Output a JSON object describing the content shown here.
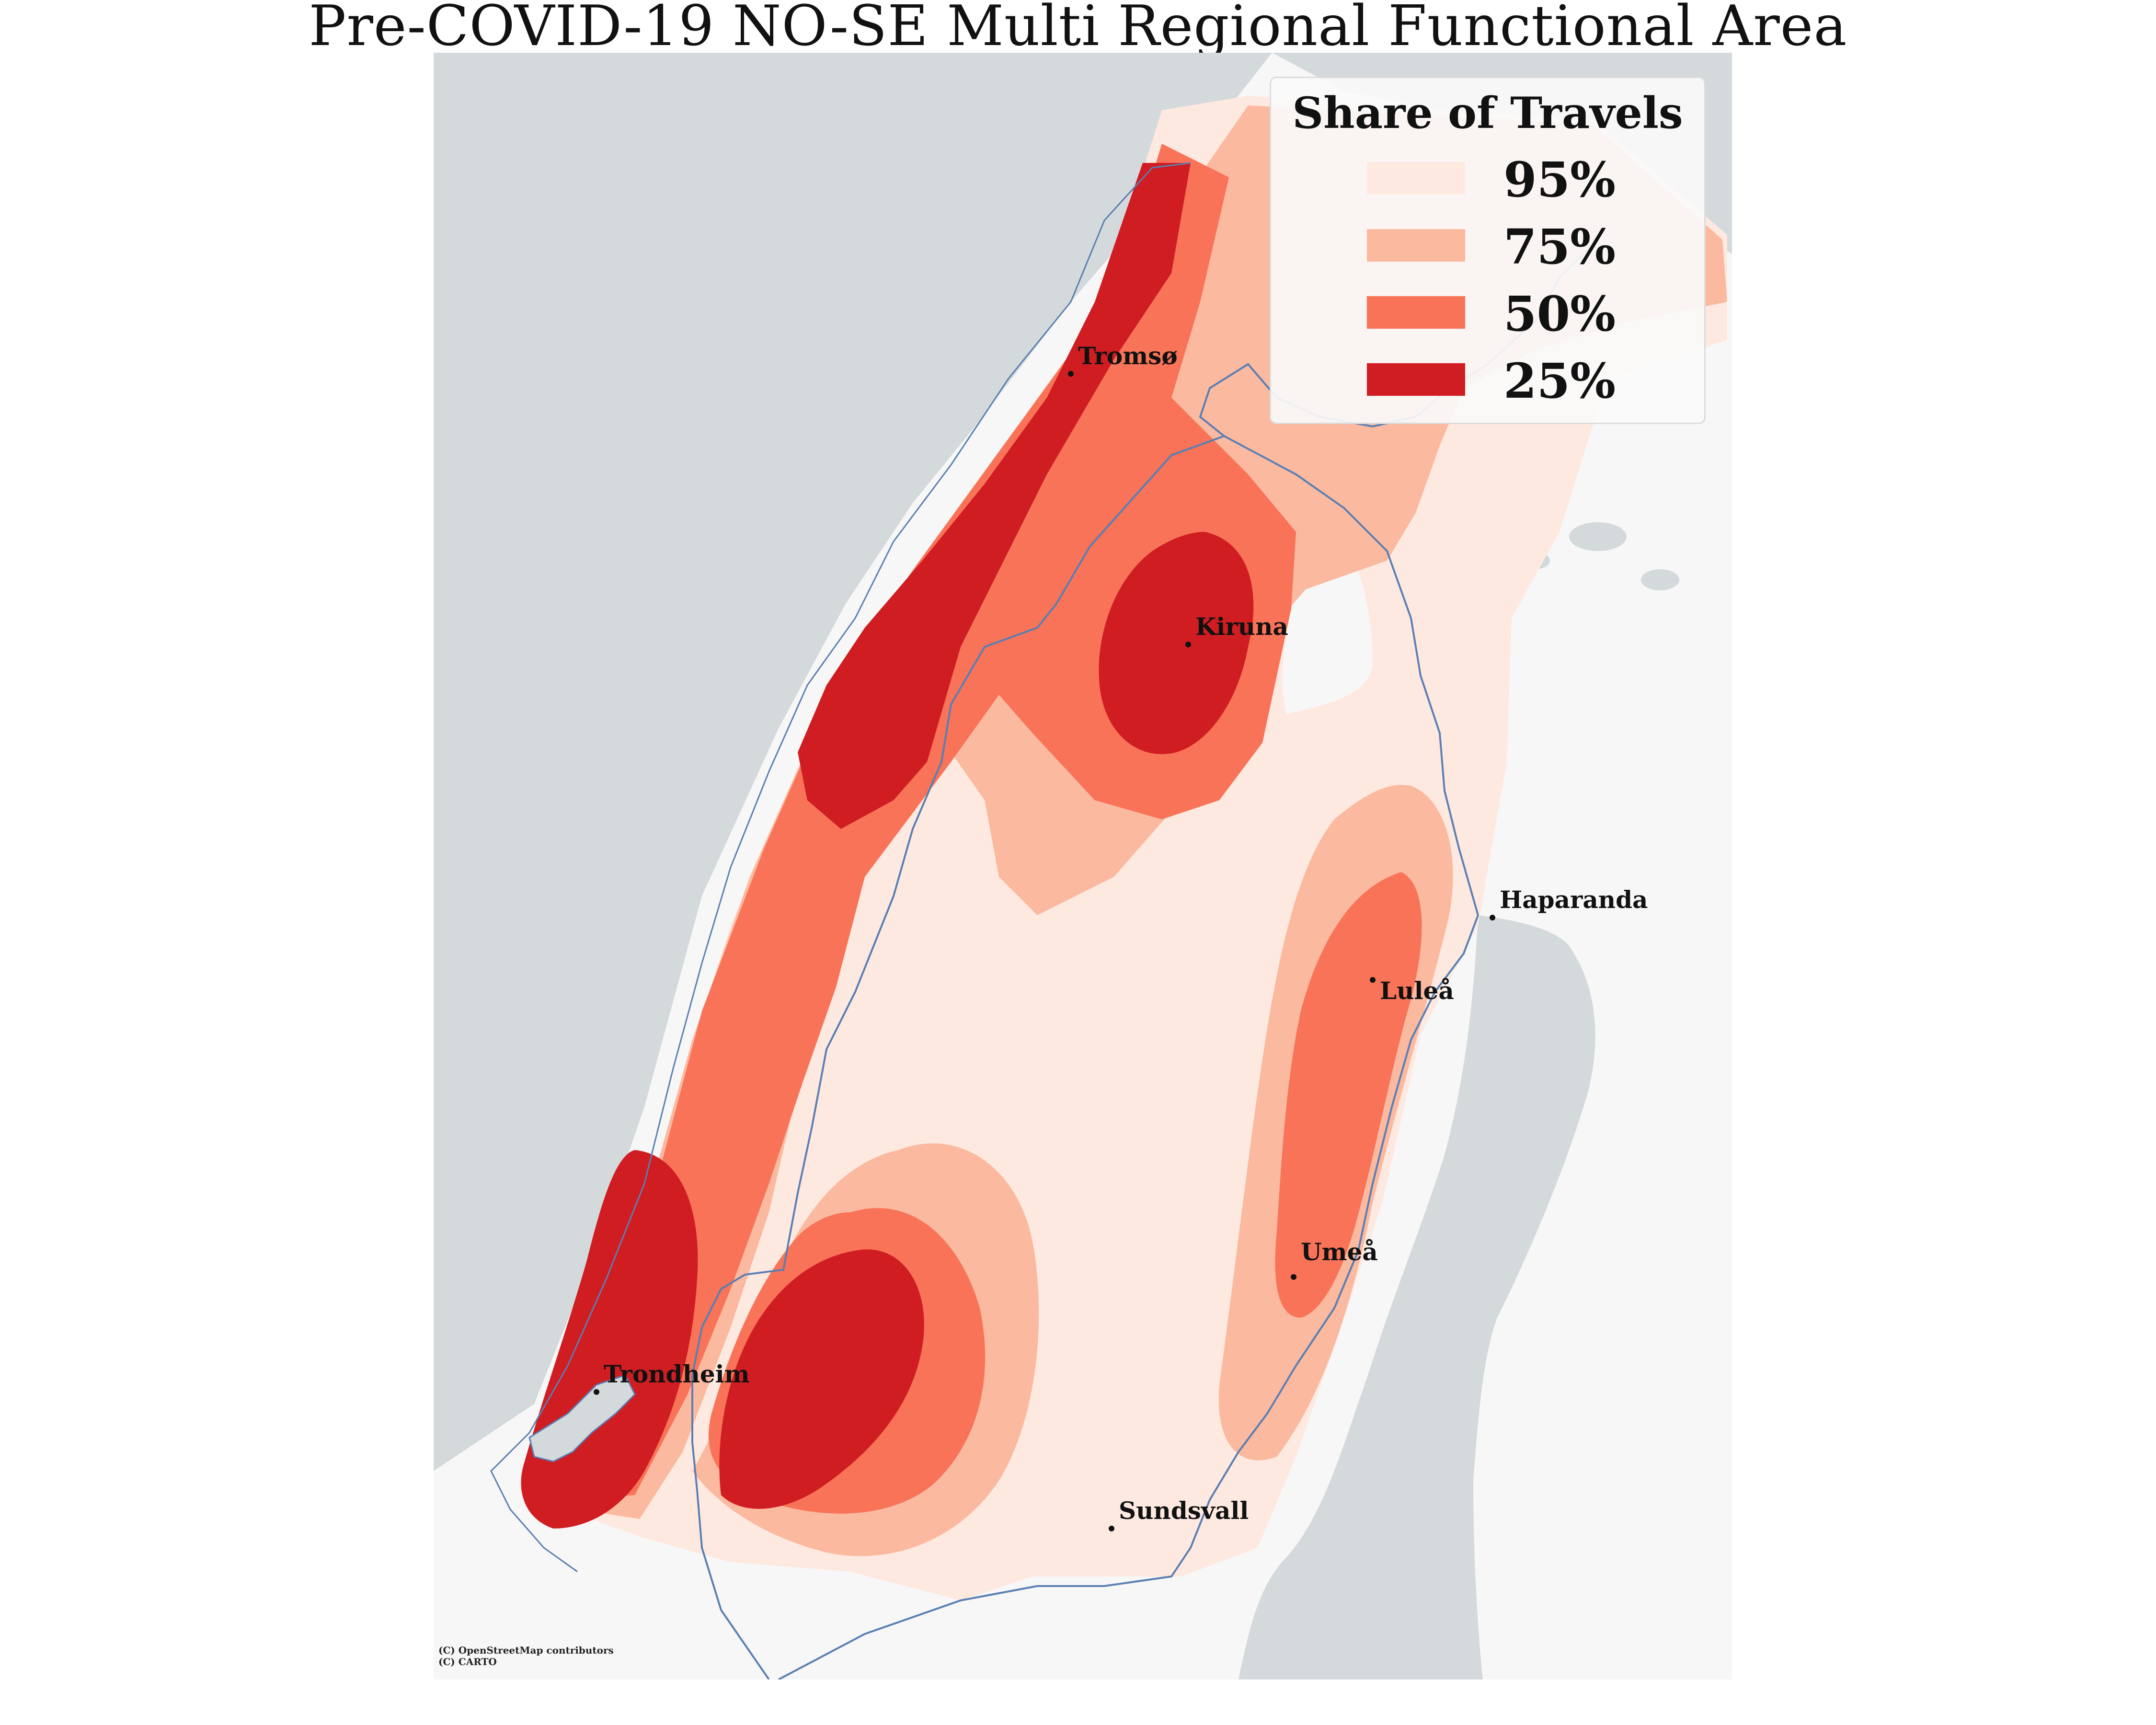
{
  "title": "Pre-COVID-19 NO-SE Multi Regional Functional Area",
  "legend": {
    "title": "Share of Travels",
    "items": [
      {
        "label": "95%",
        "color": "#fee9e0"
      },
      {
        "label": "75%",
        "color": "#fbb9a0"
      },
      {
        "label": "50%",
        "color": "#f87357"
      },
      {
        "label": "25%",
        "color": "#cf1d22"
      }
    ]
  },
  "cities": [
    {
      "name": "Tromsø"
    },
    {
      "name": "Kiruna"
    },
    {
      "name": "Haparanda"
    },
    {
      "name": "Luleå"
    },
    {
      "name": "Umeå"
    },
    {
      "name": "Trondheim"
    },
    {
      "name": "Sundsvall"
    }
  ],
  "attribution": [
    "(C) OpenStreetMap contributors",
    "(C) CARTO"
  ],
  "colors": {
    "sea": "#d4d9dc",
    "land": "#f7f7f7",
    "border": "#5a7fb3"
  }
}
